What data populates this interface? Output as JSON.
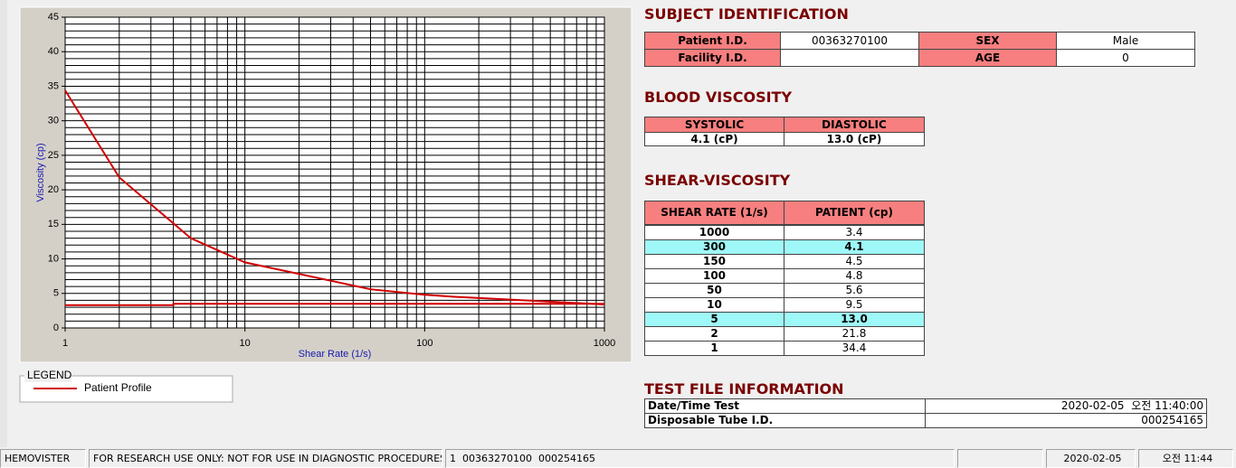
{
  "chart_data": {
    "type": "line",
    "x_label": "Shear Rate (1/s)",
    "y_label": "Viscosity (cp)",
    "x_scale": "log",
    "xlim": [
      1,
      1000
    ],
    "ylim": [
      0,
      45
    ],
    "xticks": [
      1,
      10,
      100,
      1000
    ],
    "yticks": [
      0,
      5,
      10,
      15,
      20,
      25,
      30,
      35,
      40,
      45
    ],
    "grid": true,
    "minor_grid": true,
    "legend_title": "LEGEND",
    "series": [
      {
        "name": "Patient Profile",
        "color": "#d00000",
        "x": [
          1,
          2,
          5,
          10,
          50,
          100,
          150,
          300,
          1000
        ],
        "values": [
          34.4,
          21.8,
          13.0,
          9.5,
          5.6,
          4.8,
          4.5,
          4.1,
          3.4
        ]
      },
      {
        "color": "#d00000",
        "x": [
          1,
          4,
          4,
          1000
        ],
        "values": [
          3.3,
          3.3,
          3.5,
          3.5
        ]
      }
    ]
  },
  "subject_identification": {
    "title": "SUBJECT IDENTIFICATION",
    "rows": [
      [
        "Patient I.D.",
        "00363270100",
        "SEX",
        "Male"
      ],
      [
        "Facility I.D.",
        null,
        "AGE",
        "0"
      ]
    ]
  },
  "blood_viscosity": {
    "title": "BLOOD VISCOSITY",
    "headers": [
      "SYSTOLIC",
      "DIASTOLIC"
    ],
    "values": [
      "4.1 (cP)",
      "13.0 (cP)"
    ]
  },
  "shear_viscosity": {
    "title": "SHEAR-VISCOSITY",
    "headers": [
      "SHEAR RATE (1/s)",
      "PATIENT (cp)"
    ],
    "highlight_rows": [
      1,
      6
    ],
    "rows": [
      [
        "1000",
        "3.4"
      ],
      [
        "300",
        "4.1"
      ],
      [
        "150",
        "4.5"
      ],
      [
        "100",
        "4.8"
      ],
      [
        "50",
        "5.6"
      ],
      [
        "10",
        "9.5"
      ],
      [
        "5",
        "13.0"
      ],
      [
        "2",
        "21.8"
      ],
      [
        "1",
        "34.4"
      ]
    ]
  },
  "test_file_information": {
    "title": "TEST FILE INFORMATION",
    "rows": [
      [
        "Date/Time Test",
        "2020-02-05  오전 11:40:00"
      ],
      [
        "Disposable Tube I.D.",
        "000254165"
      ]
    ]
  },
  "status_bar": [
    "HEMOVISTER",
    "FOR RESEARCH USE ONLY: NOT FOR USE IN DIAGNOSTIC PROCEDURES",
    "1  00363270100  000254165",
    null,
    "2020-02-05",
    "오전 11:44"
  ]
}
